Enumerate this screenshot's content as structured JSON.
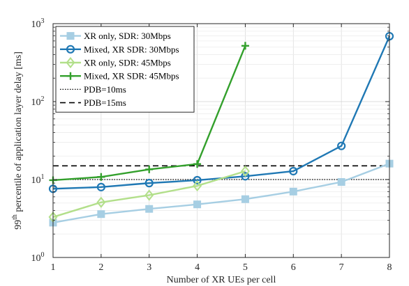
{
  "chart_data": {
    "type": "line",
    "xlabel": "Number of XR UEs per cell",
    "ylabel_main": "99",
    "ylabel_sup": "th",
    "ylabel_rest": " percentile of application layer delay [ms]",
    "xlim": [
      1,
      8
    ],
    "ylim": [
      1,
      1000
    ],
    "yscale": "log",
    "grid": true,
    "legend_position": "top-left",
    "x_ticks": [
      "1",
      "2",
      "3",
      "4",
      "5",
      "6",
      "7",
      "8"
    ],
    "y_ticks": [
      {
        "base": "10",
        "exp": "0",
        "value": 1
      },
      {
        "base": "10",
        "exp": "1",
        "value": 10
      },
      {
        "base": "10",
        "exp": "2",
        "value": 100
      },
      {
        "base": "10",
        "exp": "3",
        "value": 1000
      }
    ],
    "series": [
      {
        "name": "XR only, SDR: 30Mbps",
        "color": "#a6cee3",
        "marker": "square",
        "x": [
          1,
          2,
          3,
          4,
          5,
          6,
          7,
          8
        ],
        "y": [
          2.8,
          3.6,
          4.2,
          4.8,
          5.6,
          7.0,
          9.3,
          16
        ]
      },
      {
        "name": "Mixed, XR SDR: 30Mbps",
        "color": "#1f78b4",
        "marker": "circle",
        "x": [
          1,
          2,
          3,
          4,
          5,
          6,
          7,
          8
        ],
        "y": [
          7.6,
          8.0,
          9.0,
          9.8,
          11.0,
          12.8,
          27,
          690
        ]
      },
      {
        "name": "XR only, SDR: 45Mbps",
        "color": "#b2df8a",
        "marker": "diamond",
        "x": [
          1,
          2,
          3,
          4,
          5
        ],
        "y": [
          3.3,
          5.1,
          6.3,
          8.3,
          12.8
        ]
      },
      {
        "name": "Mixed, XR SDR: 45Mbps",
        "color": "#33a02c",
        "marker": "plus",
        "x": [
          1,
          2,
          3,
          4,
          5
        ],
        "y": [
          9.8,
          10.8,
          13.5,
          15.8,
          520
        ]
      }
    ],
    "reference_lines": [
      {
        "name": "PDB=10ms",
        "value": 10,
        "style": "dotted",
        "color": "#000000"
      },
      {
        "name": "PDB=15ms",
        "value": 15,
        "style": "dashed",
        "color": "#000000"
      }
    ]
  }
}
